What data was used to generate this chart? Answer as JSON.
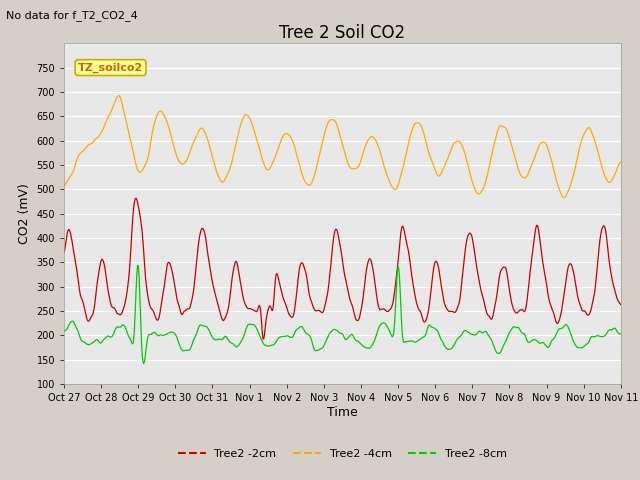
{
  "title": "Tree 2 Soil CO2",
  "subtitle": "No data for f_T2_CO2_4",
  "ylabel": "CO2 (mV)",
  "xlabel": "Time",
  "ylim": [
    100,
    800
  ],
  "yticks": [
    100,
    150,
    200,
    250,
    300,
    350,
    400,
    450,
    500,
    550,
    600,
    650,
    700,
    750
  ],
  "xtick_labels": [
    "Oct 27",
    "Oct 28",
    "Oct 29",
    "Oct 30",
    "Oct 31",
    "Nov 1",
    "Nov 2",
    "Nov 3",
    "Nov 4",
    "Nov 5",
    "Nov 6",
    "Nov 7",
    "Nov 8",
    "Nov 9",
    "Nov 10",
    "Nov 11"
  ],
  "legend_labels": [
    "Tree2 -2cm",
    "Tree2 -4cm",
    "Tree2 -8cm"
  ],
  "line_colors": [
    "#cc0000",
    "#ffaa00",
    "#00cc00"
  ],
  "annotation_text": "TZ_soilco2",
  "annotation_box_color": "#ffff99",
  "annotation_box_edge": "#ccaa00",
  "fig_bg_color": "#d4d0c8",
  "plot_bg_color": "#e8e8e8",
  "grid_color": "#ffffff",
  "title_fontsize": 12,
  "label_fontsize": 9,
  "tick_fontsize": 7,
  "subtitle_fontsize": 8,
  "legend_fontsize": 8,
  "annot_fontsize": 8
}
